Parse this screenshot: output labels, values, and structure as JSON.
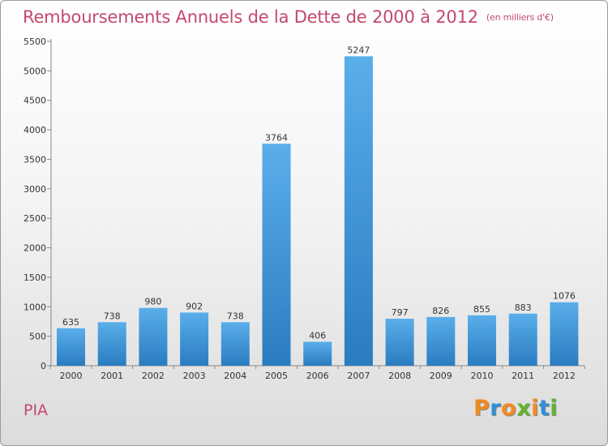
{
  "chart_data": {
    "type": "bar",
    "title": "Remboursements Annuels de la Dette de 2000 à 2012",
    "subtitle": "(en milliers d'€)",
    "categories": [
      "2000",
      "2001",
      "2002",
      "2003",
      "2004",
      "2005",
      "2006",
      "2007",
      "2008",
      "2009",
      "2010",
      "2011",
      "2012"
    ],
    "values": [
      635,
      738,
      980,
      902,
      738,
      3764,
      406,
      5247,
      797,
      826,
      855,
      883,
      1076
    ],
    "yticks": [
      0,
      500,
      1000,
      1500,
      2000,
      2500,
      3000,
      3500,
      4000,
      4500,
      5000,
      5500
    ],
    "ylim": [
      0,
      5500
    ],
    "grid": false,
    "legend": "none",
    "colors": {
      "bar_top": "#5aaeea",
      "bar_bottom": "#2a7cc0",
      "text": "#c4486c"
    }
  },
  "footer": {
    "commune": "PIA",
    "logo_letters": [
      {
        "ch": "P",
        "color": "#f28a1e"
      },
      {
        "ch": "r",
        "color": "#2f8fd6"
      },
      {
        "ch": "o",
        "color": "#f28a1e"
      },
      {
        "ch": "x",
        "color": "#63b32e"
      },
      {
        "ch": "i",
        "color": "#f28a1e"
      },
      {
        "ch": "t",
        "color": "#2f8fd6"
      },
      {
        "ch": "i",
        "color": "#63b32e"
      }
    ]
  }
}
